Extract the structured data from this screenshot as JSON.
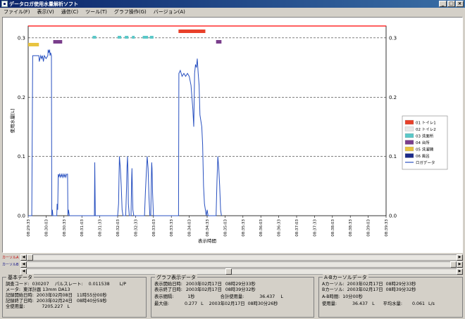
{
  "window": {
    "title": "データロガ使用水量解析ソフト",
    "buttons": [
      "_",
      "□",
      "×"
    ]
  },
  "menu": [
    "ファイル(F)",
    "表示(V)",
    "通信(C)",
    "ツール(T)",
    "グラフ操作(G)",
    "バージョン(A)"
  ],
  "chart_data": {
    "type": "line",
    "ylabel": "使用水量[L]",
    "xlabel": "表示時間",
    "ylim": [
      0,
      0.32
    ],
    "yticks": [
      "0.3",
      "0.2",
      "0.1",
      "0.0"
    ],
    "y2ticks": [
      "0.3",
      "0.2",
      "0.1",
      "0.0"
    ],
    "xticks": [
      "08:29:33",
      "08:30:03",
      "08:30:33",
      "08:31:03",
      "08:31:33",
      "08:32:03",
      "08:32:33",
      "08:33:03",
      "08:33:33",
      "08:34:03",
      "08:34:33",
      "08:35:03",
      "08:35:33",
      "08:36:03",
      "08:36:33",
      "08:37:03",
      "08:37:33",
      "08:38:03",
      "08:38:33",
      "08:39:03",
      "08:39:33"
    ],
    "grid": "horizontal dashed",
    "legend_position": "right",
    "legend": [
      {
        "label": "01 トイレ1",
        "color": "#e8402a"
      },
      {
        "label": "02 トイレ2",
        "color": "#e8e8e8"
      },
      {
        "label": "03 洗面所",
        "color": "#5ac8c8"
      },
      {
        "label": "04 台所",
        "color": "#7a3e8c"
      },
      {
        "label": "05 洗濯機",
        "color": "#e8c440"
      },
      {
        "label": "06 風呂",
        "color": "#1a2a8a"
      },
      {
        "label": "ロガデータ",
        "color": "#2850c0"
      }
    ],
    "event_bars": [
      {
        "category": "05 洗濯機",
        "start": 0,
        "end": 0.6,
        "color": "#e8c440"
      },
      {
        "category": "04 台所",
        "start": 1.4,
        "end": 1.9,
        "color": "#7a3e8c"
      },
      {
        "category": "03 洗面所",
        "start": 3.6,
        "end": 3.8,
        "color": "#5ac8c8"
      },
      {
        "category": "03 洗面所",
        "start": 5.0,
        "end": 5.2,
        "color": "#5ac8c8"
      },
      {
        "category": "03 洗面所",
        "start": 5.4,
        "end": 5.6,
        "color": "#5ac8c8"
      },
      {
        "category": "03 洗面所",
        "start": 5.8,
        "end": 5.95,
        "color": "#5ac8c8"
      },
      {
        "category": "03 洗面所",
        "start": 6.4,
        "end": 6.7,
        "color": "#5ac8c8"
      },
      {
        "category": "03 洗面所",
        "start": 6.8,
        "end": 7.0,
        "color": "#5ac8c8"
      },
      {
        "category": "01 トイレ1",
        "start": 8.4,
        "end": 9.9,
        "color": "#e8402a"
      },
      {
        "category": "04 台所",
        "start": 10.5,
        "end": 10.8,
        "color": "#7a3e8c"
      }
    ],
    "series": [
      {
        "name": "ロガデータ",
        "points": [
          [
            0,
            0
          ],
          [
            0.2,
            0
          ],
          [
            0.25,
            0.27
          ],
          [
            0.6,
            0.27
          ],
          [
            0.62,
            0.26
          ],
          [
            0.7,
            0.27
          ],
          [
            0.75,
            0.265
          ],
          [
            0.8,
            0.27
          ],
          [
            0.85,
            0.26
          ],
          [
            0.9,
            0.27
          ],
          [
            1.0,
            0.265
          ],
          [
            1.1,
            0.27
          ],
          [
            1.12,
            0.28
          ],
          [
            1.15,
            0.275
          ],
          [
            1.2,
            0.28
          ],
          [
            1.22,
            0.27
          ],
          [
            1.25,
            0.275
          ],
          [
            1.3,
            0.27
          ],
          [
            1.32,
            0.0
          ],
          [
            1.35,
            0.01
          ],
          [
            1.38,
            0
          ],
          [
            1.6,
            0
          ],
          [
            1.62,
            0.02
          ],
          [
            1.65,
            0.01
          ],
          [
            1.68,
            0.07
          ],
          [
            1.7,
            0.065
          ],
          [
            1.75,
            0.07
          ],
          [
            1.8,
            0.065
          ],
          [
            1.85,
            0.07
          ],
          [
            1.9,
            0.065
          ],
          [
            1.95,
            0.07
          ],
          [
            2.0,
            0.065
          ],
          [
            2.05,
            0.07
          ],
          [
            2.1,
            0.065
          ],
          [
            2.15,
            0.07
          ],
          [
            2.2,
            0.07
          ],
          [
            2.22,
            0.0
          ],
          [
            2.25,
            0.01
          ],
          [
            2.3,
            0
          ],
          [
            3.7,
            0
          ],
          [
            3.72,
            0.09
          ],
          [
            3.75,
            0
          ],
          [
            5.0,
            0
          ],
          [
            5.05,
            0.02
          ],
          [
            5.08,
            0.07
          ],
          [
            5.1,
            0.1
          ],
          [
            5.15,
            0.08
          ],
          [
            5.2,
            0.05
          ],
          [
            5.25,
            0.01
          ],
          [
            5.3,
            0
          ],
          [
            5.45,
            0
          ],
          [
            5.5,
            0.05
          ],
          [
            5.52,
            0.08
          ],
          [
            5.55,
            0.1
          ],
          [
            5.58,
            0.07
          ],
          [
            5.6,
            0.02
          ],
          [
            5.65,
            0
          ],
          [
            5.75,
            0
          ],
          [
            5.78,
            0.06
          ],
          [
            5.8,
            0.08
          ],
          [
            5.82,
            0.05
          ],
          [
            5.85,
            0.01
          ],
          [
            5.9,
            0
          ],
          [
            6.5,
            0
          ],
          [
            6.55,
            0.04
          ],
          [
            6.6,
            0.07
          ],
          [
            6.65,
            0.1
          ],
          [
            6.7,
            0.08
          ],
          [
            6.72,
            0.06
          ],
          [
            6.75,
            0.03
          ],
          [
            6.8,
            0
          ],
          [
            6.85,
            0
          ],
          [
            6.88,
            0.06
          ],
          [
            6.9,
            0.09
          ],
          [
            6.92,
            0.08
          ],
          [
            6.95,
            0.04
          ],
          [
            7.0,
            0
          ],
          [
            8.4,
            0
          ],
          [
            8.42,
            0.24
          ],
          [
            8.5,
            0.245
          ],
          [
            8.55,
            0.24
          ],
          [
            8.6,
            0.235
          ],
          [
            8.7,
            0.24
          ],
          [
            8.8,
            0.235
          ],
          [
            8.9,
            0.24
          ],
          [
            9.0,
            0.235
          ],
          [
            9.1,
            0.22
          ],
          [
            9.2,
            0.18
          ],
          [
            9.25,
            0.15
          ],
          [
            9.3,
            0.24
          ],
          [
            9.35,
            0.255
          ],
          [
            9.4,
            0.25
          ],
          [
            9.45,
            0.265
          ],
          [
            9.5,
            0.24
          ],
          [
            9.55,
            0.22
          ],
          [
            9.6,
            0.17
          ],
          [
            9.7,
            0.15
          ],
          [
            9.75,
            0.12
          ],
          [
            9.8,
            0.05
          ],
          [
            9.85,
            0.02
          ],
          [
            9.9,
            0.01
          ],
          [
            9.95,
            0.0
          ],
          [
            10.0,
            0.01
          ],
          [
            10.05,
            0
          ],
          [
            10.5,
            0
          ],
          [
            10.55,
            0.06
          ],
          [
            10.6,
            0.1
          ],
          [
            10.65,
            0.08
          ],
          [
            10.7,
            0.05
          ],
          [
            10.75,
            0.01
          ],
          [
            10.8,
            0
          ]
        ]
      }
    ]
  },
  "scrollbars": [
    {
      "label": "カーソルA",
      "thumb_fraction": 0.0
    },
    {
      "label": "カーソルB",
      "thumb_fraction": 1.0
    },
    {
      "label": "",
      "thumb_fraction": 0.5
    }
  ],
  "basic": {
    "title": "基本データ",
    "rows": [
      {
        "k": "調査コード:",
        "v": "030207",
        "k2": "パルスレート:",
        "v2": "0.011538",
        "u2": "L/P"
      },
      {
        "k": "メータ:",
        "v": "東洋計器 13mm DA13"
      },
      {
        "k": "記録開始日時:",
        "v": "2003年02月08日",
        "v2": "11時55分00秒"
      },
      {
        "k": "記録終了日時:",
        "v": "2003年02月24日",
        "v2": "08時40分59秒"
      },
      {
        "k": "全使用量:",
        "v": "7205.227",
        "u": "L"
      }
    ]
  },
  "graph": {
    "title": "グラフ表示データ",
    "rows": [
      {
        "k": "表示開始日時:",
        "v": "2003年02月17日",
        "v2": "08時29分33秒"
      },
      {
        "k": "表示終了日時:",
        "v": "2003年02月17日",
        "v2": "08時39分32秒"
      },
      {
        "k": "表示間隔:",
        "v": "1秒",
        "k2": "合計使用量:",
        "v3": "36.437",
        "u": "L"
      },
      {
        "k": "最大値:",
        "v": "0.277",
        "u1": "L",
        "v4": "2003年02月17日",
        "v5": "08時30分26秒"
      }
    ]
  },
  "cursor": {
    "title": "A-Bカーソルデータ",
    "rows": [
      {
        "k": "Aカーソル:",
        "v": "2003年02月17日",
        "v2": "08時29分33秒"
      },
      {
        "k": "Bカーソル:",
        "v": "2003年02月17日",
        "v2": "08時39分32秒"
      },
      {
        "k": "A-B時間:",
        "v": "10分00秒"
      },
      {
        "k": "使用量:",
        "v": "36.437",
        "u": "L",
        "k2": "平均水量:",
        "v3": "0.061",
        "u2": "L/s"
      }
    ]
  }
}
